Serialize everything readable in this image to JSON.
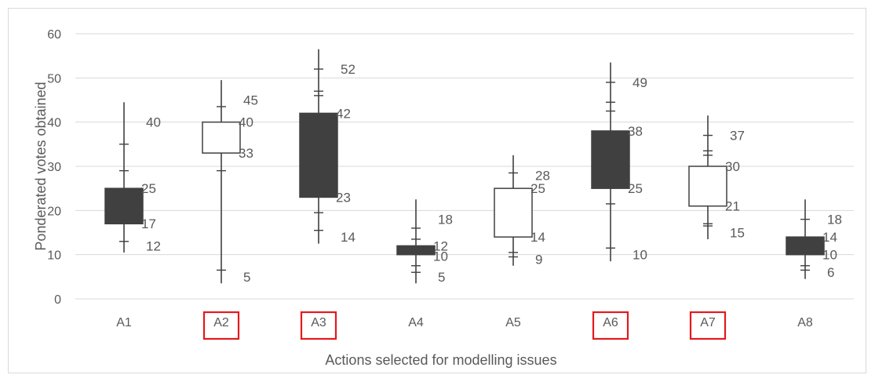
{
  "chart_data": {
    "type": "candlestick",
    "xlabel": "Actions selected for modelling issues",
    "ylabel": "Ponderated votes obtained",
    "ylim": [
      0,
      60
    ],
    "yticks": [
      0,
      10,
      20,
      30,
      40,
      50,
      60
    ],
    "grid": true,
    "legend": "none",
    "categories": [
      "A1",
      "A2",
      "A3",
      "A4",
      "A5",
      "A6",
      "A7",
      "A8"
    ],
    "highlighted_categories": [
      "A2",
      "A3",
      "A6",
      "A7"
    ],
    "series": [
      {
        "category": "A1",
        "box": [
          17,
          25
        ],
        "box_color": "dark",
        "labels": [
          40,
          25,
          17,
          12
        ],
        "whisker_top": 44.5,
        "whisker_bottom": 10.5,
        "caps": [
          35,
          29,
          13
        ]
      },
      {
        "category": "A2",
        "box": [
          33,
          40
        ],
        "box_color": "white",
        "labels": [
          45,
          40,
          33,
          5
        ],
        "whisker_top": 49.5,
        "whisker_bottom": 3.5,
        "caps": [
          43.5,
          29,
          6.5
        ]
      },
      {
        "category": "A3",
        "box": [
          23,
          42
        ],
        "box_color": "dark",
        "labels": [
          52,
          42,
          23,
          14
        ],
        "whisker_top": 56.5,
        "whisker_bottom": 12.5,
        "caps": [
          52,
          47,
          46,
          19.5,
          15.5
        ]
      },
      {
        "category": "A4",
        "box": [
          10,
          12
        ],
        "box_color": "dark",
        "labels": [
          18,
          12,
          10,
          5
        ],
        "whisker_top": 22.5,
        "whisker_bottom": 3.5,
        "caps": [
          16,
          13.5,
          7.5,
          6
        ]
      },
      {
        "category": "A5",
        "box": [
          14,
          25
        ],
        "box_color": "white",
        "labels": [
          28,
          25,
          14,
          9
        ],
        "whisker_top": 32.5,
        "whisker_bottom": 7.5,
        "caps": [
          28.5,
          10.5,
          9.5
        ]
      },
      {
        "category": "A6",
        "box": [
          25,
          38
        ],
        "box_color": "dark",
        "labels": [
          49,
          38,
          25,
          10
        ],
        "whisker_top": 53.5,
        "whisker_bottom": 8.5,
        "caps": [
          49,
          44.5,
          42.5,
          21.5,
          11.5
        ]
      },
      {
        "category": "A7",
        "box": [
          21,
          30
        ],
        "box_color": "white",
        "labels": [
          37,
          30,
          21,
          15
        ],
        "whisker_top": 41.5,
        "whisker_bottom": 13.5,
        "caps": [
          37,
          33.5,
          32.5,
          17,
          16.5
        ]
      },
      {
        "category": "A8",
        "box": [
          10,
          14
        ],
        "box_color": "dark",
        "labels": [
          18,
          14,
          10,
          6
        ],
        "whisker_top": 22.5,
        "whisker_bottom": 4.5,
        "caps": [
          18,
          7.5,
          6.5
        ]
      }
    ]
  },
  "colors": {
    "dark_box": "#404040",
    "white_box": "#ffffff",
    "line": "#404040",
    "grid": "#d9d9d9",
    "text": "#595959",
    "highlight": "#e31a1c"
  }
}
